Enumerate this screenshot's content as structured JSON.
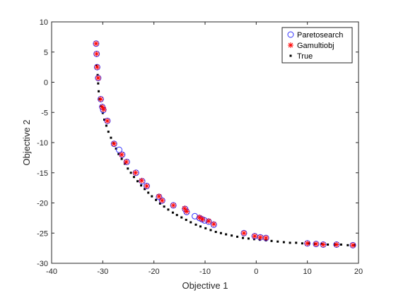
{
  "chart_data": {
    "type": "scatter",
    "xlabel": "Objective 1",
    "ylabel": "Objective 2",
    "xlim": [
      -40,
      20
    ],
    "ylim": [
      -30,
      10
    ],
    "xticks": [
      -40,
      -30,
      -20,
      -10,
      0,
      10,
      20
    ],
    "yticks": [
      -30,
      -25,
      -20,
      -15,
      -10,
      -5,
      0,
      5,
      10
    ],
    "xtick_labels": [
      "-40",
      "-30",
      "-20",
      "-10",
      "0",
      "10",
      "20"
    ],
    "ytick_labels": [
      "-30",
      "-25",
      "-20",
      "-15",
      "-10",
      "-5",
      "0",
      "5",
      "10"
    ],
    "grid": false,
    "legend": {
      "placement": "top-right"
    },
    "colors": {
      "paretosearch": "#3333ff",
      "gamultiobj": "#ff0000",
      "true": "#000000",
      "axis": "#262626"
    },
    "series": [
      {
        "name": "Paretosearch",
        "marker": "circle",
        "x": [
          -31.3,
          -31.2,
          -31.1,
          -30.9,
          -30.4,
          -30.1,
          -29.9,
          -29.1,
          -27.8,
          -26.8,
          -26.2,
          -25.3,
          -23.5,
          -22.3,
          -21.4,
          -19.0,
          -18.4,
          -16.2,
          -13.9,
          -13.6,
          -12.0,
          -11.1,
          -10.6,
          -10.1,
          -9.3,
          -8.3,
          -2.4,
          -0.3,
          0.8,
          1.9,
          10.0,
          11.7,
          13.1,
          15.7,
          18.9
        ],
        "y": [
          6.4,
          4.7,
          2.5,
          0.7,
          -2.8,
          -4.1,
          -4.6,
          -6.4,
          -10.2,
          -11.2,
          -12.0,
          -13.2,
          -15.0,
          -16.4,
          -17.2,
          -19.0,
          -19.6,
          -20.4,
          -21.0,
          -21.5,
          -22.2,
          -22.5,
          -22.7,
          -22.9,
          -23.1,
          -23.6,
          -25.0,
          -25.5,
          -25.7,
          -25.8,
          -26.7,
          -26.8,
          -26.9,
          -26.9,
          -27.0
        ]
      },
      {
        "name": "Gamultiobj",
        "marker": "asterisk",
        "x": [
          -31.3,
          -31.2,
          -31.1,
          -30.9,
          -30.4,
          -30.1,
          -29.8,
          -29.1,
          -27.8,
          -26.3,
          -25.4,
          -23.6,
          -22.4,
          -21.4,
          -19.0,
          -18.4,
          -16.2,
          -14.0,
          -13.6,
          -11.1,
          -10.5,
          -9.3,
          -8.3,
          -2.4,
          -0.3,
          0.8,
          1.9,
          10.0,
          11.7,
          13.1,
          15.7,
          18.9
        ],
        "y": [
          6.4,
          4.7,
          2.5,
          0.7,
          -2.8,
          -4.1,
          -4.5,
          -6.4,
          -10.2,
          -12.0,
          -13.2,
          -15.0,
          -16.3,
          -17.2,
          -18.9,
          -19.6,
          -20.4,
          -20.9,
          -21.4,
          -22.4,
          -22.7,
          -23.0,
          -23.5,
          -25.0,
          -25.5,
          -25.7,
          -25.8,
          -26.7,
          -26.8,
          -26.9,
          -26.9,
          -27.0
        ]
      },
      {
        "name": "True",
        "marker": "point",
        "x": [
          -31.2,
          -31.0,
          -30.9,
          -30.8,
          -30.6,
          -30.3,
          -30.0,
          -29.7,
          -29.3,
          -28.9,
          -28.4,
          -27.9,
          -27.4,
          -26.9,
          -26.3,
          -25.7,
          -25.1,
          -24.5,
          -23.9,
          -23.2,
          -22.5,
          -21.8,
          -21.1,
          -20.4,
          -19.6,
          -18.8,
          -18.0,
          -17.2,
          -16.3,
          -15.5,
          -14.6,
          -13.7,
          -12.8,
          -11.8,
          -10.9,
          -9.9,
          -8.9,
          -7.9,
          -6.9,
          -5.9,
          -4.8,
          -3.7,
          -2.6,
          -1.5,
          -0.4,
          0.7,
          1.9,
          3.0,
          4.2,
          5.4,
          6.6,
          7.8,
          9.0,
          10.3,
          11.5,
          12.8,
          14.0,
          15.3,
          16.6,
          17.9,
          19.2
        ],
        "y": [
          2.8,
          1.2,
          -0.2,
          -1.5,
          -2.8,
          -4.0,
          -5.1,
          -6.2,
          -7.2,
          -8.2,
          -9.2,
          -10.1,
          -11.0,
          -11.9,
          -12.7,
          -13.5,
          -14.3,
          -15.0,
          -15.7,
          -16.4,
          -17.1,
          -17.7,
          -18.3,
          -18.9,
          -19.5,
          -20.1,
          -20.6,
          -21.1,
          -21.6,
          -22.0,
          -22.4,
          -22.8,
          -23.2,
          -23.6,
          -23.9,
          -24.2,
          -24.5,
          -24.8,
          -25.0,
          -25.2,
          -25.4,
          -25.6,
          -25.8,
          -25.9,
          -26.0,
          -26.1,
          -26.2,
          -26.3,
          -26.4,
          -26.5,
          -26.6,
          -26.6,
          -26.7,
          -26.7,
          -26.8,
          -26.8,
          -26.9,
          -26.9,
          -26.9,
          -27.0,
          -27.0
        ]
      }
    ]
  }
}
